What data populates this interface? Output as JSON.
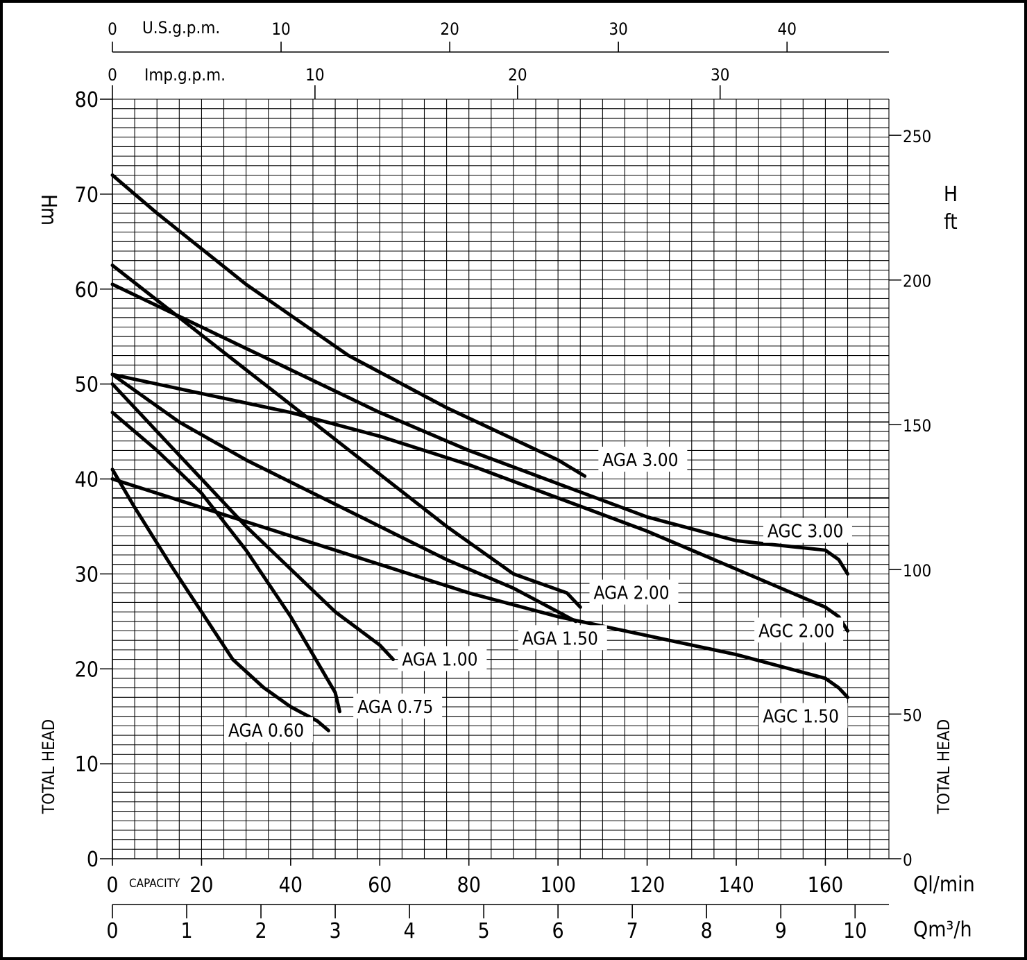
{
  "chart_data": {
    "type": "line",
    "x_axis": {
      "label": "Ql/min",
      "range": [
        0,
        170
      ],
      "ticks": [
        0,
        20,
        40,
        60,
        80,
        100,
        120,
        140,
        160
      ],
      "tick_labels": [
        "0",
        "20",
        "40",
        "60",
        "80",
        "100",
        "120",
        "140",
        "160"
      ],
      "inline_label": "CAPACITY"
    },
    "x_axis_secondary": {
      "label": "Qm³/h",
      "range": [
        0,
        10.2
      ],
      "ticks": [
        0,
        1,
        2,
        3,
        4,
        5,
        6,
        7,
        8,
        9,
        10
      ],
      "tick_labels": [
        "0",
        "1",
        "2",
        "3",
        "4",
        "5",
        "6",
        "7",
        "8",
        "9",
        "10"
      ]
    },
    "x_axis_top_us": {
      "label": "U.S.g.p.m.",
      "range": [
        0,
        44.9
      ],
      "ticks": [
        0,
        10,
        20,
        30,
        40
      ],
      "tick_labels": [
        "0",
        "10",
        "20",
        "30",
        "40"
      ]
    },
    "x_axis_top_imp": {
      "label": "Imp.g.p.m.",
      "range": [
        0,
        37.4
      ],
      "ticks": [
        0,
        10,
        20,
        30
      ],
      "tick_labels": [
        "0",
        "10",
        "20",
        "30"
      ]
    },
    "y_axis": {
      "label_unit": "H m",
      "label_letter": "H",
      "label_sub": "m",
      "side_label": "TOTAL HEAD",
      "range": [
        0,
        80
      ],
      "ticks": [
        0,
        10,
        20,
        30,
        40,
        50,
        60,
        70,
        80
      ],
      "tick_labels": [
        "0",
        "10",
        "20",
        "30",
        "40",
        "50",
        "60",
        "70",
        "80"
      ]
    },
    "y_axis_right": {
      "label_letter": "H",
      "label_sub": "ft",
      "side_label": "TOTAL HEAD",
      "range": [
        0,
        262.5
      ],
      "ticks": [
        0,
        50,
        100,
        150,
        200,
        250
      ],
      "tick_labels": [
        "0",
        "50",
        "100",
        "150",
        "200",
        "250"
      ]
    },
    "grid": true,
    "series": [
      {
        "name": "AGA 0.60",
        "x": [
          0,
          5,
          13,
          20,
          27,
          34,
          40,
          46,
          48.5
        ],
        "y": [
          41,
          37,
          31,
          26,
          21,
          18,
          16,
          14.5,
          13.5
        ],
        "label_pos": [
          26,
          13
        ]
      },
      {
        "name": "AGA 0.75",
        "x": [
          0,
          10,
          20,
          30,
          40,
          45,
          50,
          51
        ],
        "y": [
          47,
          43,
          38.5,
          32.5,
          25.5,
          21.5,
          17.5,
          15.5
        ],
        "label_pos": [
          55,
          15.5
        ]
      },
      {
        "name": "AGA 1.00",
        "x": [
          0,
          10,
          20,
          30,
          40,
          50,
          60,
          63
        ],
        "y": [
          50,
          45,
          40,
          35,
          30.5,
          26,
          22.5,
          21
        ],
        "label_pos": [
          65,
          20.5
        ]
      },
      {
        "name": "AGA 1.50",
        "x": [
          0,
          15,
          30,
          45,
          60,
          75,
          90,
          100,
          104
        ],
        "y": [
          51,
          46,
          42,
          38.5,
          35,
          31.5,
          28.5,
          26,
          25
        ],
        "label_pos": [
          92,
          22.7
        ]
      },
      {
        "name": "AGA 2.00",
        "x": [
          0,
          15,
          30,
          45,
          60,
          75,
          90,
          102,
          105
        ],
        "y": [
          62.5,
          57,
          51.5,
          46,
          40.5,
          35,
          30,
          28,
          26.5
        ],
        "label_pos": [
          108,
          27.5
        ]
      },
      {
        "name": "AGA 3.00",
        "x": [
          0,
          10,
          30,
          53,
          75,
          100,
          106
        ],
        "y": [
          72,
          68,
          60.5,
          53,
          47.5,
          42,
          40.3
        ],
        "label_pos": [
          110,
          41.5
        ]
      },
      {
        "name": "AGC 1.50",
        "x": [
          0,
          20,
          40,
          60,
          80,
          100,
          120,
          140,
          160,
          163,
          165
        ],
        "y": [
          40,
          37,
          34,
          31,
          28,
          25.5,
          23.5,
          21.5,
          19,
          18,
          17
        ],
        "label_pos": [
          146,
          14.5
        ]
      },
      {
        "name": "AGC 2.00",
        "x": [
          0,
          20,
          40,
          60,
          80,
          100,
          120,
          140,
          160,
          163,
          165
        ],
        "y": [
          51,
          49,
          47,
          44.5,
          41.5,
          38,
          34.5,
          30.5,
          26.5,
          25.5,
          24
        ],
        "label_pos": [
          145,
          23.5
        ]
      },
      {
        "name": "AGC 3.00",
        "x": [
          0,
          20,
          40,
          60,
          80,
          100,
          120,
          140,
          160,
          163,
          165
        ],
        "y": [
          60.5,
          56,
          51.5,
          47,
          43,
          39.5,
          36,
          33.5,
          32.5,
          31.5,
          30
        ],
        "label_pos": [
          147,
          34
        ]
      }
    ]
  }
}
